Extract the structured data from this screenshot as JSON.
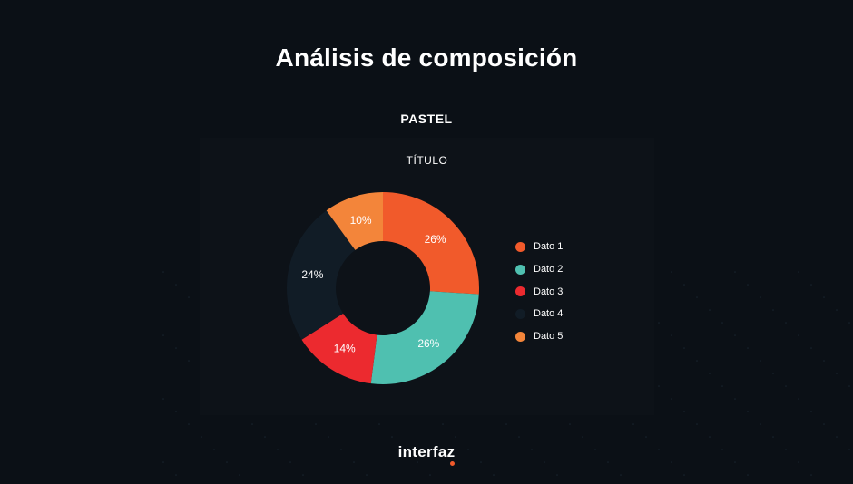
{
  "page": {
    "title": "Análisis de composición",
    "subtitle": "PASTEL",
    "brand": "interfaz",
    "brand_dot_color": "#f15a2b"
  },
  "chart_data": {
    "type": "pie",
    "donut": true,
    "title": "TÍTULO",
    "legend_position": "right",
    "categories": [
      "Dato 1",
      "Dato 2",
      "Dato 3",
      "Dato 4",
      "Dato 5"
    ],
    "values": [
      26,
      26,
      14,
      24,
      10
    ],
    "labels": [
      "26%",
      "26%",
      "14%",
      "24%",
      "10%"
    ],
    "colors": [
      "#f15a2b",
      "#4fc0b0",
      "#ec2a2f",
      "#111c26",
      "#f3853a"
    ]
  }
}
